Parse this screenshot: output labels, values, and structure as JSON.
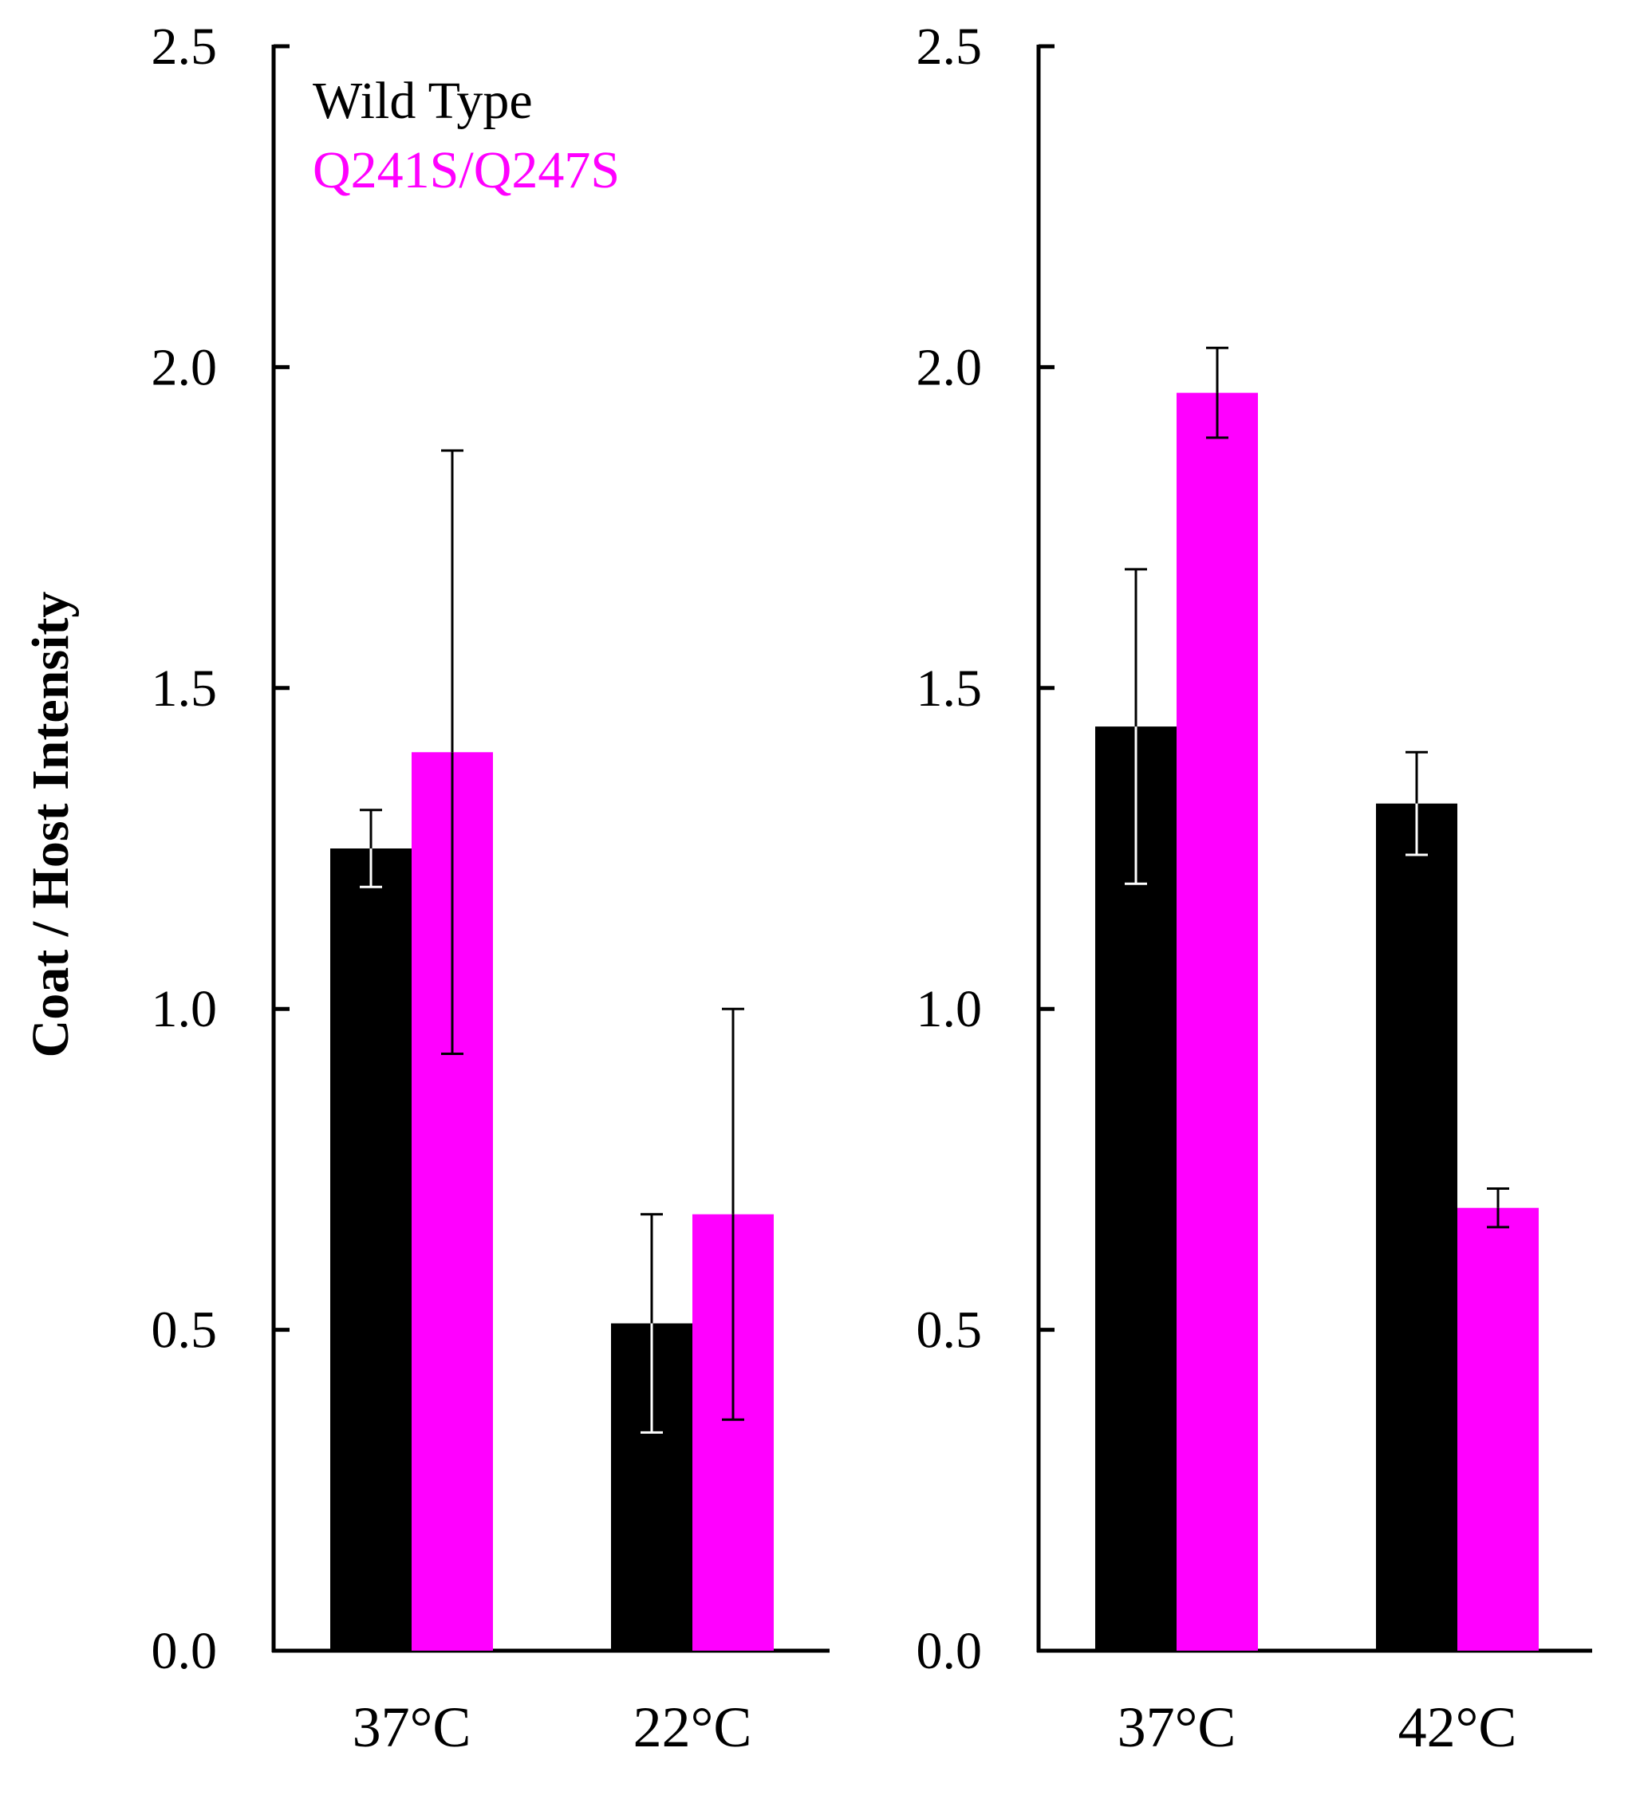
{
  "colors": {
    "wild_type": "#000000",
    "mutant": "#ff00ff",
    "axis": "#000000"
  },
  "y_axis_label": "Coat / Host Intensity",
  "chart_data": [
    {
      "type": "bar",
      "panel": "left",
      "title": "",
      "xlabel": "",
      "ylabel": "Coat / Host Intensity",
      "ylim": [
        0,
        2.5
      ],
      "y_ticks": [
        "0.0",
        "0.5",
        "1.0",
        "1.5",
        "2.0",
        "2.5"
      ],
      "categories": [
        "37°C",
        "22°C"
      ],
      "legend": {
        "position": "top-left",
        "entries": [
          "Wild Type",
          "Q241S/Q247S"
        ]
      },
      "series": [
        {
          "name": "Wild Type",
          "color": "#000000",
          "values": [
            1.25,
            0.51
          ],
          "errors": [
            0.06,
            0.17
          ]
        },
        {
          "name": "Q241S/Q247S",
          "color": "#ff00ff",
          "values": [
            1.4,
            0.68
          ],
          "errors": [
            0.47,
            0.32
          ]
        }
      ]
    },
    {
      "type": "bar",
      "panel": "right",
      "title": "",
      "xlabel": "",
      "ylabel": "",
      "ylim": [
        0,
        2.5
      ],
      "y_ticks": [
        "0.0",
        "0.5",
        "1.0",
        "1.5",
        "2.0",
        "2.5"
      ],
      "categories": [
        "37°C",
        "42°C"
      ],
      "series": [
        {
          "name": "Wild Type",
          "color": "#000000",
          "values": [
            1.44,
            1.32
          ],
          "errors": [
            0.245,
            0.08
          ]
        },
        {
          "name": "Q241S/Q247S",
          "color": "#ff00ff",
          "values": [
            1.96,
            0.69
          ],
          "errors": [
            0.07,
            0.03
          ]
        }
      ]
    }
  ]
}
